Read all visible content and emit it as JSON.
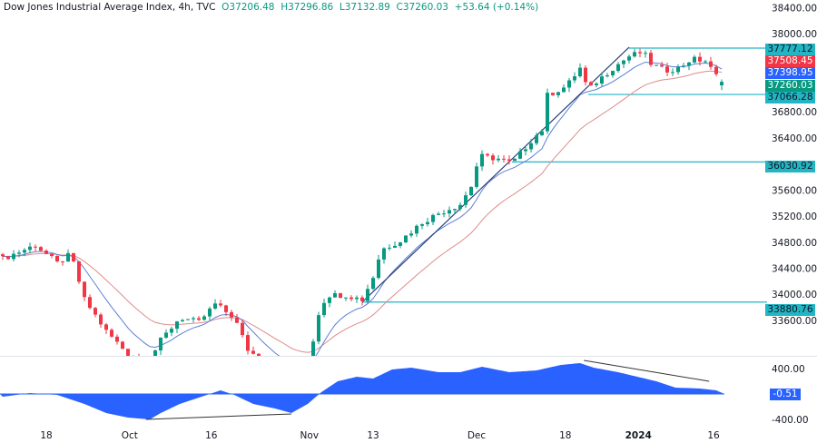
{
  "header": {
    "symbol": "Dow Jones Industrial Average Index, 4h, TVC",
    "open": "O37206.48",
    "high": "H37296.86",
    "low": "L37132.89",
    "close": "C37260.03",
    "change": "+53.64 (+0.14%)"
  },
  "colors": {
    "up": "#089981",
    "down": "#f23645",
    "ma_fast": "#5b7fd6",
    "ma_slow": "#e08a8a",
    "level": "#22b5c4",
    "osc": "#2962ff"
  },
  "price_tags": [
    {
      "label": "37777.12",
      "bg": "#22b5c4",
      "fg": "#131722"
    },
    {
      "label": "37508.45",
      "bg": "#f23645",
      "fg": "#ffffff"
    },
    {
      "label": "37398.95",
      "bg": "#2962ff",
      "fg": "#ffffff"
    },
    {
      "label": "37260.03",
      "bg": "#089981",
      "fg": "#ffffff"
    },
    {
      "label": "37066.28",
      "bg": "#22b5c4",
      "fg": "#131722"
    },
    {
      "label": "36030.92",
      "bg": "#22b5c4",
      "fg": "#131722"
    },
    {
      "label": "33880.76",
      "bg": "#22b5c4",
      "fg": "#131722"
    }
  ],
  "osc_tag": "-0.51",
  "chart_data": {
    "type": "candlestick",
    "title": "Dow Jones Industrial Average Index, 4h, TVC",
    "y_ticks": [
      "38400.00",
      "38000.00",
      "36800.00",
      "36400.00",
      "35600.00",
      "35200.00",
      "34800.00",
      "34400.00",
      "34000.00",
      "33600.00"
    ],
    "y_tick_values": [
      38400,
      38000,
      36800,
      36400,
      35600,
      35200,
      34800,
      34400,
      34000,
      33600
    ],
    "ylim": [
      33130,
      38470
    ],
    "x_ticks": [
      "18",
      "Oct",
      "16",
      "Nov",
      "13",
      "Dec",
      "18",
      "2024",
      "16"
    ],
    "x_tick_bar_index": [
      8,
      23.3,
      38.3,
      56.3,
      68,
      87,
      103.3,
      116.7,
      130.5
    ],
    "bar_count": 133,
    "close_anchors": [
      [
        0,
        34546
      ],
      [
        6,
        34755
      ],
      [
        10,
        34476
      ],
      [
        12.5,
        34615
      ],
      [
        15,
        33919
      ],
      [
        19,
        33432
      ],
      [
        23,
        33084
      ],
      [
        27,
        33000
      ],
      [
        29,
        33292
      ],
      [
        32.5,
        33641
      ],
      [
        36,
        33571
      ],
      [
        39,
        33850
      ],
      [
        42.5,
        33641
      ],
      [
        45,
        33153
      ],
      [
        48,
        32950
      ],
      [
        53,
        32660
      ],
      [
        56.5,
        33084
      ],
      [
        58,
        33710
      ],
      [
        59.5,
        33989
      ],
      [
        63,
        33989
      ],
      [
        66,
        33919
      ],
      [
        68,
        34267
      ],
      [
        69.5,
        34685
      ],
      [
        73,
        34824
      ],
      [
        77,
        35103
      ],
      [
        80,
        35242
      ],
      [
        84,
        35382
      ],
      [
        86,
        35660
      ],
      [
        87.5,
        36120
      ],
      [
        91,
        36078
      ],
      [
        93.5,
        36008
      ],
      [
        97,
        36357
      ],
      [
        99.5,
        36565
      ],
      [
        100,
        37053
      ],
      [
        103.5,
        37192
      ],
      [
        106,
        37470
      ],
      [
        107.5,
        37120
      ],
      [
        109,
        37260
      ],
      [
        112,
        37470
      ],
      [
        115,
        37652
      ],
      [
        117.5,
        37720
      ],
      [
        119,
        37540
      ],
      [
        121.5,
        37430
      ],
      [
        124,
        37470
      ],
      [
        126.5,
        37610
      ],
      [
        129,
        37580
      ],
      [
        130.5,
        37400
      ],
      [
        132,
        37260
      ]
    ],
    "levels": [
      37777.12,
      37066.28,
      36030.92,
      33880.76
    ],
    "ma_periods": [
      9,
      21
    ],
    "trendline": [
      [
        66,
        33880
      ],
      [
        115,
        37790
      ]
    ],
    "oscillator": {
      "y_ticks": [
        "400.00",
        "-400.00"
      ],
      "y_tick_values": [
        400,
        -400
      ],
      "current": -0.51,
      "anchors": [
        [
          0,
          -43
        ],
        [
          5,
          14
        ],
        [
          7.5,
          0
        ],
        [
          10,
          -14
        ],
        [
          15,
          -157
        ],
        [
          19,
          -300
        ],
        [
          23,
          -371
        ],
        [
          27,
          -400
        ],
        [
          29,
          -300
        ],
        [
          32.5,
          -157
        ],
        [
          36,
          -57
        ],
        [
          40,
          57
        ],
        [
          42.5,
          -14
        ],
        [
          46,
          -157
        ],
        [
          50,
          -229
        ],
        [
          53,
          -300
        ],
        [
          56,
          -157
        ],
        [
          58.5,
          29
        ],
        [
          61.5,
          200
        ],
        [
          65,
          271
        ],
        [
          68,
          243
        ],
        [
          71.5,
          386
        ],
        [
          75,
          414
        ],
        [
          80,
          343
        ],
        [
          84,
          343
        ],
        [
          88,
          429
        ],
        [
          93,
          343
        ],
        [
          98,
          371
        ],
        [
          102.5,
          457
        ],
        [
          106,
          486
        ],
        [
          108.5,
          414
        ],
        [
          113,
          343
        ],
        [
          120,
          200
        ],
        [
          123.5,
          100
        ],
        [
          128,
          86
        ],
        [
          131,
          57
        ],
        [
          132.5,
          0
        ]
      ],
      "divergence_lines": [
        [
          [
            26.3,
            -400
          ],
          [
            53,
            -315
          ]
        ],
        [
          [
            106.7,
            529
          ],
          [
            129.7,
            200
          ]
        ]
      ]
    }
  }
}
